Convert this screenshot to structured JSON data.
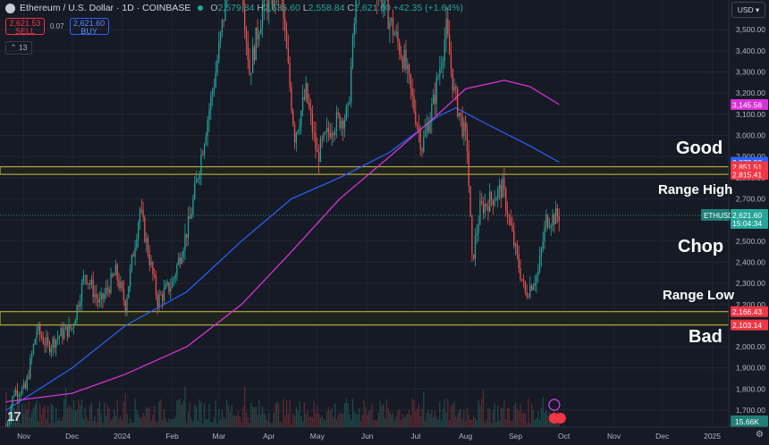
{
  "header": {
    "title": "Ethereum / U.S. Dollar · 1D · COINBASE",
    "ohlc": {
      "o_label": "O",
      "o": "2,579.84",
      "h_label": "H",
      "h": "2,635.60",
      "l_label": "L",
      "l": "2,558.84",
      "c_label": "C",
      "c": "2,621.60",
      "change": "+42.35 (+1.64%)"
    }
  },
  "trade": {
    "sell_price": "2,621.53",
    "sell_label": "SELL",
    "spread": "0.07",
    "buy_price": "2,621.60",
    "buy_label": "BUY"
  },
  "indicators_count": "13",
  "currency": "USD",
  "annotations": {
    "good": "Good",
    "range_high": "Range High",
    "chop": "Chop",
    "range_low": "Range Low",
    "bad": "Bad"
  },
  "colors": {
    "background": "#161a25",
    "up": "#26a69a",
    "down": "#ef5350",
    "zone": "#b5a642",
    "ma_fast": "#2962ff",
    "ma_slow": "#d633d6"
  },
  "chart_data": {
    "type": "candlestick",
    "y_ticks": [
      1700,
      1800,
      1900,
      2000,
      2100,
      2200,
      2300,
      2400,
      2500,
      2600,
      2700,
      2800,
      2900,
      3000,
      3100,
      3200,
      3300,
      3400,
      3500
    ],
    "ylim": [
      1620,
      3640
    ],
    "x_ticks": [
      "Nov",
      "Dec",
      "2024",
      "Feb",
      "Mar",
      "Apr",
      "May",
      "Jun",
      "Jul",
      "Aug",
      "Sep",
      "Oct",
      "Nov",
      "Dec",
      "2025"
    ],
    "zones": [
      {
        "name": "Good",
        "from": 2815.41,
        "to": 2851.51
      },
      {
        "name": "Bad",
        "from": 2103.14,
        "to": 2166.43
      }
    ],
    "price_labels": [
      {
        "value": 3145.56,
        "text": "3,145.56",
        "color": "#d633d6"
      },
      {
        "value": 2872.92,
        "text": "2,872.92",
        "color": "#2962ff"
      },
      {
        "value": 2851.51,
        "text": "2,851.51",
        "color": "#f23645"
      },
      {
        "value": 2815.41,
        "text": "2,815.41",
        "color": "#f23645"
      },
      {
        "value": 2166.43,
        "text": "2,166.43",
        "color": "#f23645"
      },
      {
        "value": 2103.14,
        "text": "2,103.14",
        "color": "#f23645"
      }
    ],
    "current": {
      "symbol": "ETHUSD",
      "value": 2621.6,
      "price": "2,621.60",
      "countdown": "15:04:34"
    },
    "volume_label": "15.66K",
    "price_path": [
      {
        "date": "2023-10-21",
        "price": 1620
      },
      {
        "date": "2023-10-26",
        "price": 1790
      },
      {
        "date": "2023-11-02",
        "price": 1800
      },
      {
        "date": "2023-11-09",
        "price": 2080
      },
      {
        "date": "2023-11-16",
        "price": 2000
      },
      {
        "date": "2023-11-24",
        "price": 2060
      },
      {
        "date": "2023-12-01",
        "price": 2090
      },
      {
        "date": "2023-12-09",
        "price": 2350
      },
      {
        "date": "2023-12-18",
        "price": 2200
      },
      {
        "date": "2023-12-28",
        "price": 2350
      },
      {
        "date": "2024-01-03",
        "price": 2200
      },
      {
        "date": "2024-01-12",
        "price": 2650
      },
      {
        "date": "2024-01-23",
        "price": 2220
      },
      {
        "date": "2024-02-01",
        "price": 2300
      },
      {
        "date": "2024-02-12",
        "price": 2600
      },
      {
        "date": "2024-02-20",
        "price": 2950
      },
      {
        "date": "2024-02-28",
        "price": 3300
      },
      {
        "date": "2024-03-12",
        "price": 4000
      },
      {
        "date": "2024-03-20",
        "price": 3300
      },
      {
        "date": "2024-03-28",
        "price": 3600
      },
      {
        "date": "2024-04-08",
        "price": 3700
      },
      {
        "date": "2024-04-17",
        "price": 3000
      },
      {
        "date": "2024-04-24",
        "price": 3200
      },
      {
        "date": "2024-05-01",
        "price": 2900
      },
      {
        "date": "2024-05-10",
        "price": 3050
      },
      {
        "date": "2024-05-20",
        "price": 3100
      },
      {
        "date": "2024-05-27",
        "price": 3850
      },
      {
        "date": "2024-06-10",
        "price": 3650
      },
      {
        "date": "2024-06-24",
        "price": 3350
      },
      {
        "date": "2024-07-05",
        "price": 2950
      },
      {
        "date": "2024-07-12",
        "price": 3150
      },
      {
        "date": "2024-07-20",
        "price": 3500
      },
      {
        "date": "2024-07-25",
        "price": 3200
      },
      {
        "date": "2024-08-02",
        "price": 2950
      },
      {
        "date": "2024-08-05",
        "price": 2400
      },
      {
        "date": "2024-08-10",
        "price": 2650
      },
      {
        "date": "2024-08-24",
        "price": 2750
      },
      {
        "date": "2024-09-01",
        "price": 2450
      },
      {
        "date": "2024-09-07",
        "price": 2250
      },
      {
        "date": "2024-09-15",
        "price": 2350
      },
      {
        "date": "2024-09-20",
        "price": 2600
      },
      {
        "date": "2024-09-28",
        "price": 2621.6
      }
    ],
    "ma_fast_path": [
      {
        "date": "2023-10-21",
        "value": 1700
      },
      {
        "date": "2023-12-01",
        "value": 1900
      },
      {
        "date": "2024-01-03",
        "value": 2100
      },
      {
        "date": "2024-02-10",
        "value": 2260
      },
      {
        "date": "2024-03-15",
        "value": 2500
      },
      {
        "date": "2024-04-15",
        "value": 2700
      },
      {
        "date": "2024-05-15",
        "value": 2800
      },
      {
        "date": "2024-06-15",
        "value": 2920
      },
      {
        "date": "2024-07-15",
        "value": 3090
      },
      {
        "date": "2024-07-26",
        "value": 3130
      },
      {
        "date": "2024-08-15",
        "value": 3050
      },
      {
        "date": "2024-09-10",
        "value": 2950
      },
      {
        "date": "2024-09-28",
        "value": 2872.92
      }
    ],
    "ma_slow_path": [
      {
        "date": "2023-10-21",
        "value": 1740
      },
      {
        "date": "2023-12-01",
        "value": 1780
      },
      {
        "date": "2024-01-03",
        "value": 1870
      },
      {
        "date": "2024-02-10",
        "value": 2000
      },
      {
        "date": "2024-03-15",
        "value": 2200
      },
      {
        "date": "2024-04-15",
        "value": 2450
      },
      {
        "date": "2024-05-15",
        "value": 2700
      },
      {
        "date": "2024-06-15",
        "value": 2900
      },
      {
        "date": "2024-07-15",
        "value": 3100
      },
      {
        "date": "2024-08-01",
        "value": 3220
      },
      {
        "date": "2024-08-25",
        "value": 3260
      },
      {
        "date": "2024-09-10",
        "value": 3230
      },
      {
        "date": "2024-09-28",
        "value": 3145.56
      }
    ]
  }
}
